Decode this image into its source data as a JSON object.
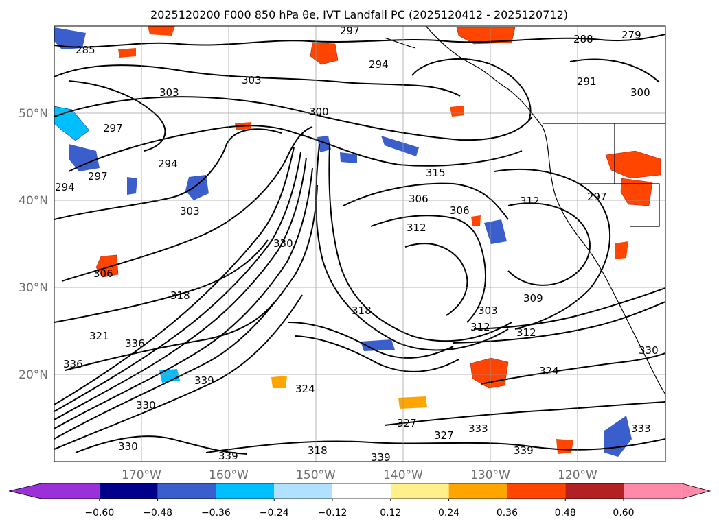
{
  "figure": {
    "title": "2025120200 F000 850 hPa θe, IVT Landfall PC (2025120412 - 2025120712)"
  },
  "map": {
    "lat_labels": [
      "50°N",
      "40°N",
      "30°N",
      "20°N"
    ],
    "lon_labels": [
      "170°W",
      "160°W",
      "150°W",
      "140°W",
      "130°W",
      "120°W"
    ],
    "contour_labels": [
      "279",
      "285",
      "288",
      "297",
      "294",
      "303",
      "300",
      "315",
      "306",
      "312",
      "309",
      "330",
      "318",
      "321",
      "336",
      "339",
      "324",
      "327",
      "333",
      "291"
    ]
  },
  "colorbar": {
    "ticks": [
      "−0.60",
      "−0.48",
      "−0.36",
      "−0.24",
      "−0.12",
      "0.12",
      "0.24",
      "0.36",
      "0.48",
      "0.60"
    ],
    "colors": [
      "#9b30d9",
      "#00008b",
      "#3a5fcd",
      "#00bfff",
      "#b0e2ff",
      "#ffffff",
      "#fff08c",
      "#ffa500",
      "#ff4500",
      "#b22222",
      "#ff89a8"
    ]
  }
}
